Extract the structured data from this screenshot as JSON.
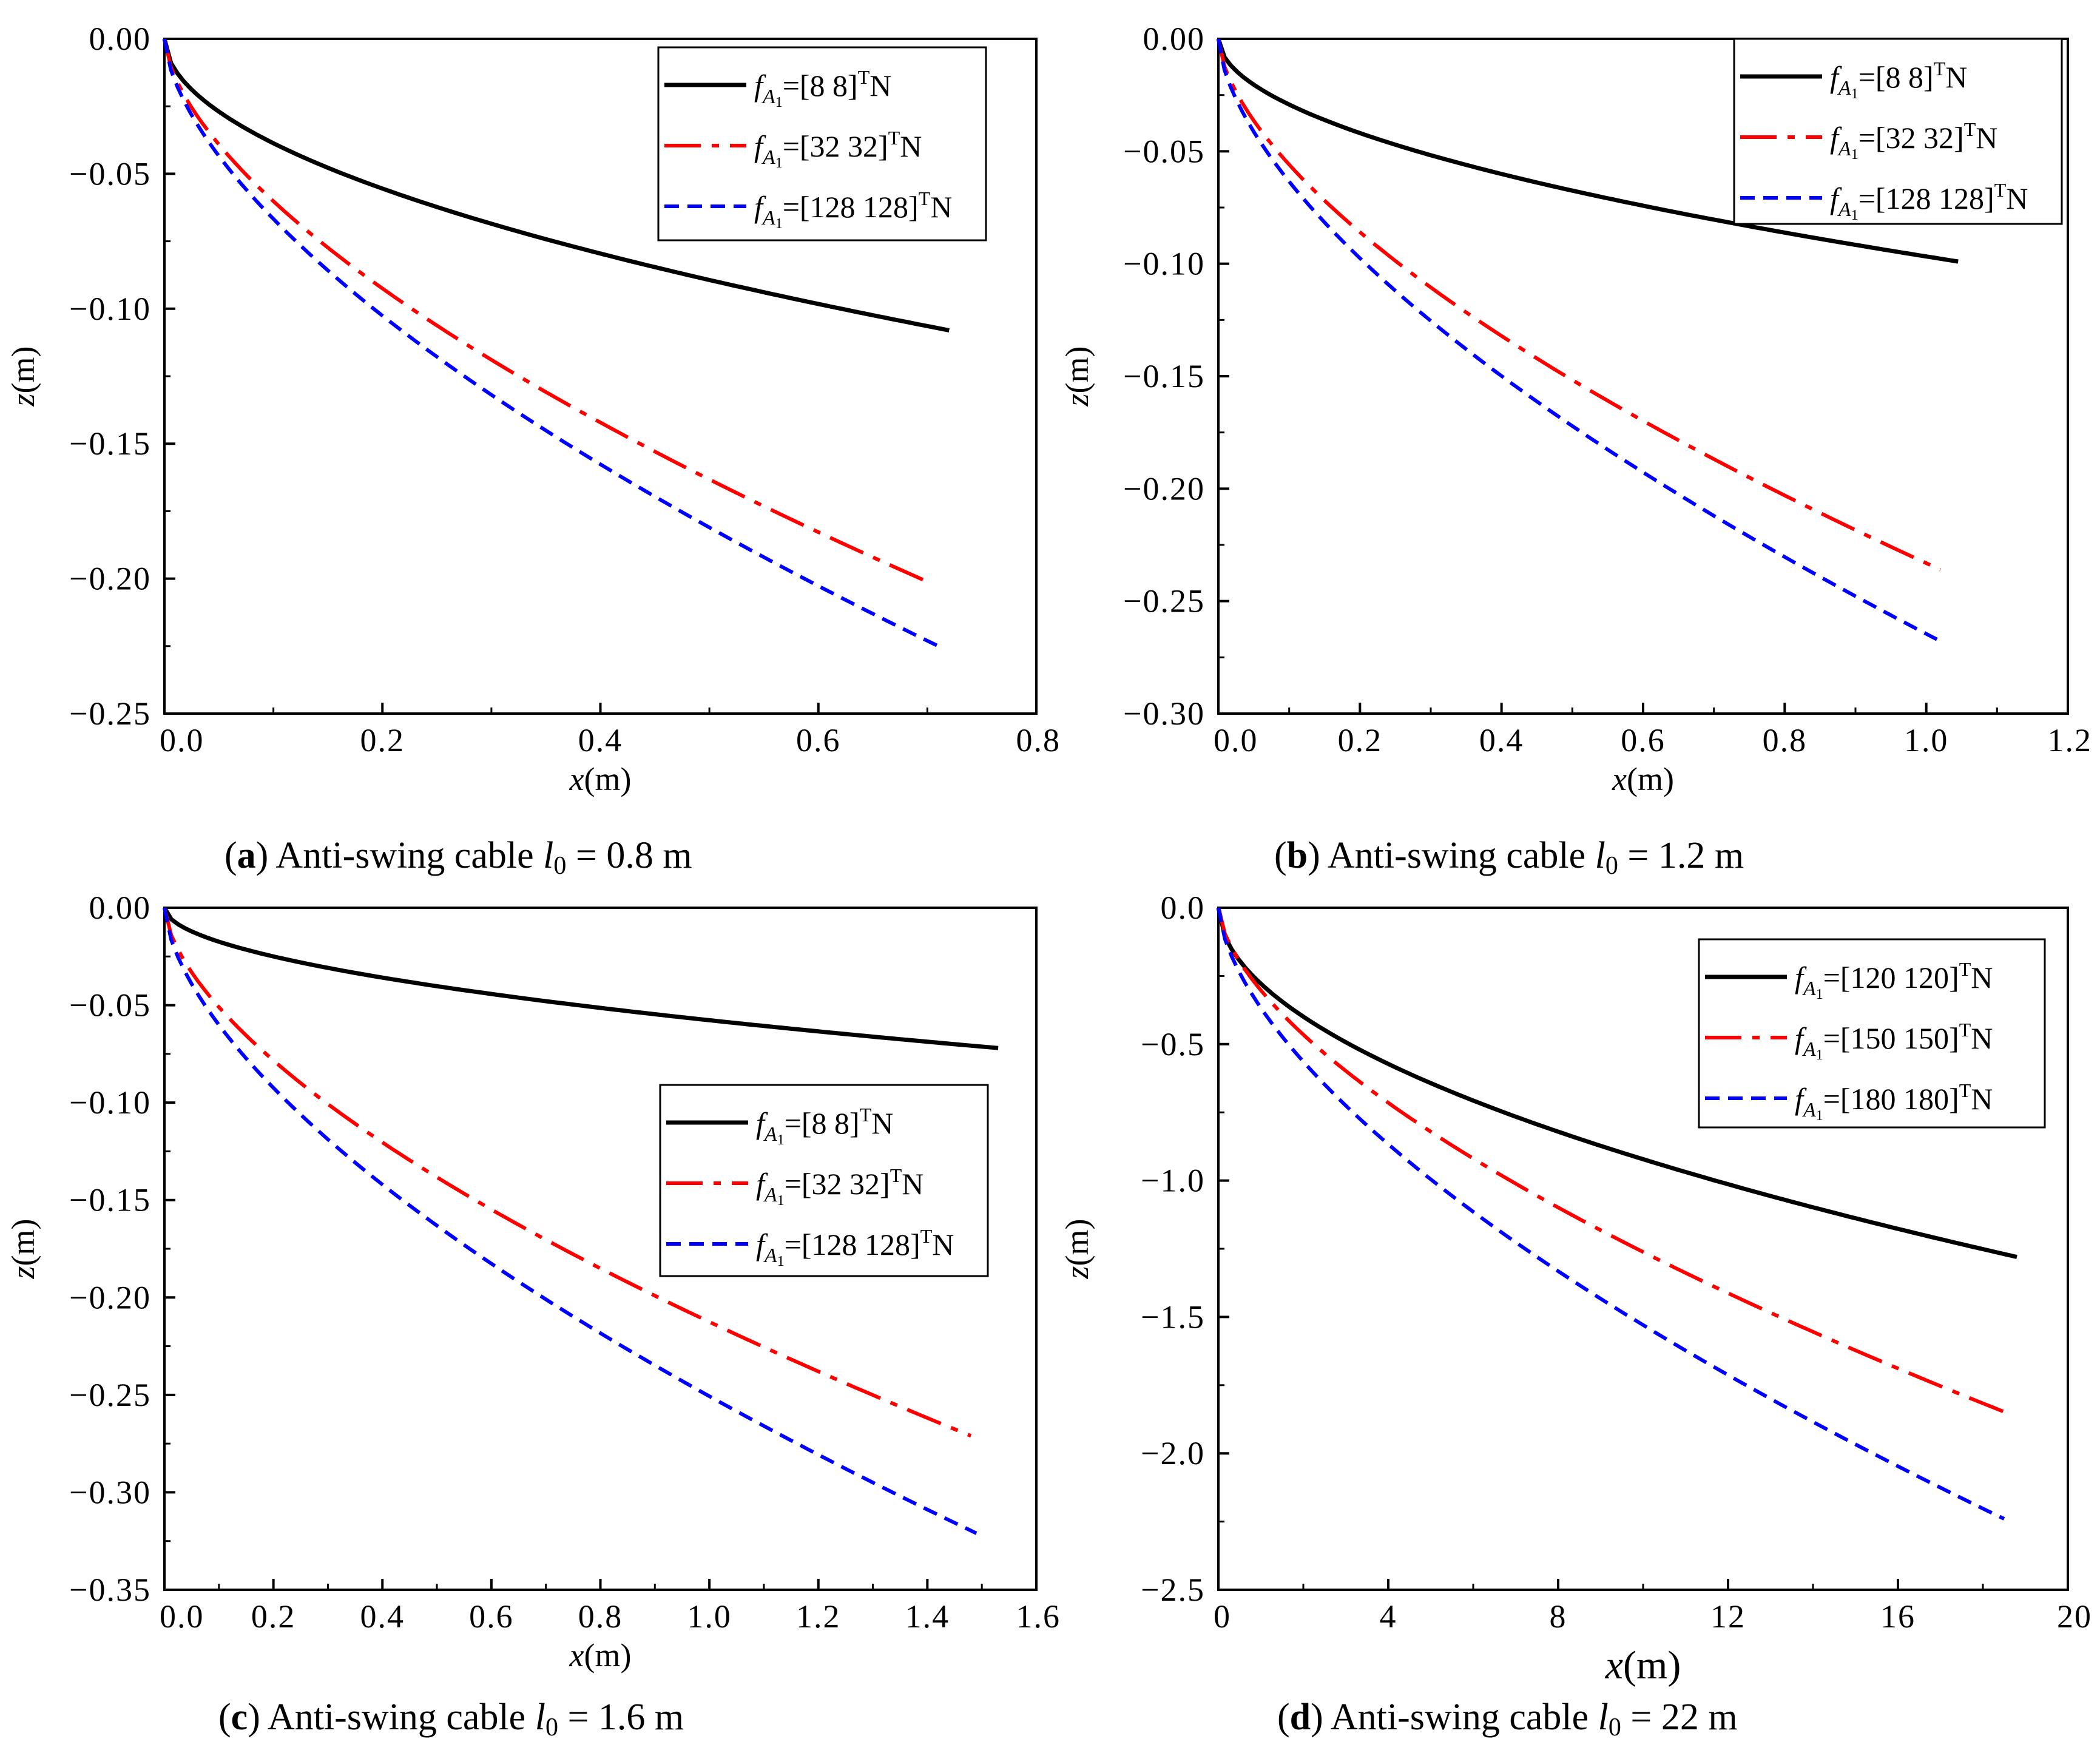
{
  "chart_data": [
    {
      "type": "line",
      "caption": {
        "letter": "a",
        "text": "Anti-swing cable",
        "var": "l",
        "sub": "0",
        "rest": " = 0.8 m"
      },
      "xlabel": {
        "var": "x",
        "unit": "(m)"
      },
      "ylabel": {
        "var": "z",
        "unit": "(m)"
      },
      "xlim": [
        0,
        0.8
      ],
      "ylim": [
        -0.25,
        0
      ],
      "xticks": [
        "0.0",
        "0.2",
        "0.4",
        "0.6",
        "0.8"
      ],
      "yticks": [
        "0.00",
        "−0.05",
        "−0.10",
        "−0.15",
        "−0.20",
        "−0.25"
      ],
      "grid": false,
      "legend_position": "top-right",
      "series": [
        {
          "name": "[8 8]",
          "unit": "N",
          "color": "#000000",
          "style": "solid",
          "x_end": 0.72,
          "z_end": -0.108
        },
        {
          "name": "[32 32]",
          "unit": "N",
          "color": "#ff0000",
          "style": "dashdot",
          "x_end": 0.705,
          "z_end": -0.202
        },
        {
          "name": "[128 128]",
          "unit": "N",
          "color": "#0000ff",
          "style": "dash",
          "x_end": 0.71,
          "z_end": -0.225
        }
      ]
    },
    {
      "type": "line",
      "caption": {
        "letter": "b",
        "text": "Anti-swing cable",
        "var": "l",
        "sub": "0",
        "rest": " = 1.2 m"
      },
      "xlabel": {
        "var": "x",
        "unit": "(m)"
      },
      "ylabel": {
        "var": "z",
        "unit": "(m)"
      },
      "xlim": [
        0,
        1.2
      ],
      "ylim": [
        -0.3,
        0
      ],
      "xticks": [
        "0.0",
        "0.2",
        "0.4",
        "0.6",
        "0.8",
        "1.0",
        "1.2"
      ],
      "yticks": [
        "0.00",
        "−0.05",
        "−0.10",
        "−0.15",
        "−0.20",
        "−0.25",
        "−0.30"
      ],
      "grid": false,
      "legend_position": "top-right",
      "series": [
        {
          "name": "[8 8]",
          "unit": "N",
          "color": "#000000",
          "style": "solid",
          "x_end": 1.045,
          "z_end": -0.099
        },
        {
          "name": "[32 32]",
          "unit": "N",
          "color": "#ff0000",
          "style": "dashdot",
          "x_end": 1.02,
          "z_end": -0.236
        },
        {
          "name": "[128 128]",
          "unit": "N",
          "color": "#0000ff",
          "style": "dash",
          "x_end": 1.015,
          "z_end": -0.267
        }
      ]
    },
    {
      "type": "line",
      "caption": {
        "letter": "c",
        "text": "Anti-swing cable",
        "var": "l",
        "sub": "0",
        "rest": " = 1.6 m"
      },
      "xlabel": {
        "var": "x",
        "unit": "(m)"
      },
      "ylabel": {
        "var": "z",
        "unit": "(m)"
      },
      "xlim": [
        0,
        1.6
      ],
      "ylim": [
        -0.35,
        0
      ],
      "xticks": [
        "0.0",
        "0.2",
        "0.4",
        "0.6",
        "0.8",
        "1.0",
        "1.2",
        "1.4",
        "1.6"
      ],
      "yticks": [
        "0.00",
        "−0.05",
        "−0.10",
        "−0.15",
        "−0.20",
        "−0.25",
        "−0.30",
        "−0.35"
      ],
      "grid": false,
      "legend_position": "middle-right",
      "series": [
        {
          "name": "[8 8]",
          "unit": "N",
          "color": "#000000",
          "style": "solid",
          "x_end": 1.53,
          "z_end": -0.072
        },
        {
          "name": "[32 32]",
          "unit": "N",
          "color": "#ff0000",
          "style": "dashdot",
          "x_end": 1.48,
          "z_end": -0.271
        },
        {
          "name": "[128 128]",
          "unit": "N",
          "color": "#0000ff",
          "style": "dash",
          "x_end": 1.49,
          "z_end": -0.321
        }
      ]
    },
    {
      "type": "line",
      "caption": {
        "letter": "d",
        "text": "Anti-swing cable",
        "var": "l",
        "sub": "0",
        "rest": " = 22 m"
      },
      "xlabel": {
        "var": "x",
        "unit": "(m)"
      },
      "ylabel": {
        "var": "z",
        "unit": "(m)"
      },
      "xlim": [
        0,
        20
      ],
      "ylim": [
        -2.5,
        0
      ],
      "xticks": [
        "0",
        "4",
        "8",
        "12",
        "16",
        "20"
      ],
      "yticks": [
        "0.0",
        "−0.5",
        "−1.0",
        "−1.5",
        "−2.0",
        "−2.5"
      ],
      "grid": false,
      "legend_position": "top-right",
      "series": [
        {
          "name": "[120 120]",
          "unit": "N",
          "color": "#000000",
          "style": "solid",
          "x_end": 18.8,
          "z_end": -1.28
        },
        {
          "name": "[150 150]",
          "unit": "N",
          "color": "#ff0000",
          "style": "dashdot",
          "x_end": 18.7,
          "z_end": -1.86
        },
        {
          "name": "[180 180]",
          "unit": "N",
          "color": "#0000ff",
          "style": "dash",
          "x_end": 18.5,
          "z_end": -2.24
        }
      ]
    }
  ],
  "legend_symbol": {
    "var": "f",
    "sub": "A",
    "subsub": "1",
    "sup": "T"
  },
  "legend_prefix": "="
}
